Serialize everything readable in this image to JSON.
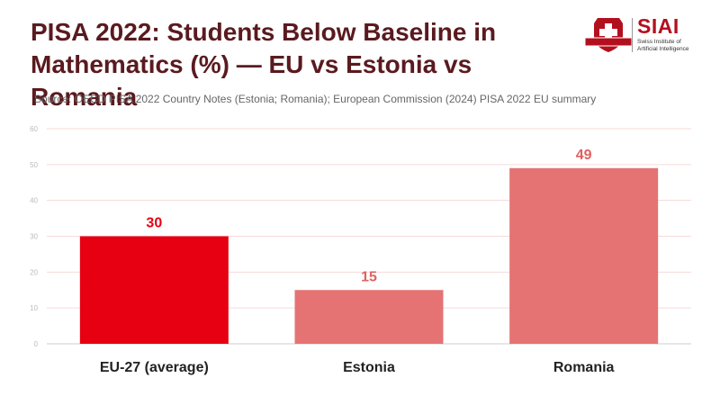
{
  "title": "PISA 2022: Students Below Baseline in Mathematics (%) — EU vs Estonia vs Romania",
  "source": "Source: OECD PISA 2022 Country Notes (Estonia; Romania); European Commission (2024) PISA 2022 EU summary",
  "logo": {
    "name": "SIAI",
    "subtitle_line1": "Swiss Institute of",
    "subtitle_line2": "Artificial Intelligence"
  },
  "colors": {
    "title": "#5a1a1f",
    "highlight": "#e60012",
    "bar": "#e57373",
    "grid": "#f6dada",
    "axis_text": "#bbbbbb"
  },
  "chart_data": {
    "type": "bar",
    "title": "PISA 2022: Students Below Baseline in Mathematics (%) — EU vs Estonia vs Romania",
    "categories": [
      "EU-27 (average)",
      "Estonia",
      "Romania"
    ],
    "values": [
      30,
      15,
      49
    ],
    "highlight_index": 0,
    "ylim": [
      0,
      60
    ],
    "yticks": [
      0,
      10,
      20,
      30,
      40,
      50,
      60
    ],
    "grid": true,
    "xlabel": "",
    "ylabel": ""
  }
}
